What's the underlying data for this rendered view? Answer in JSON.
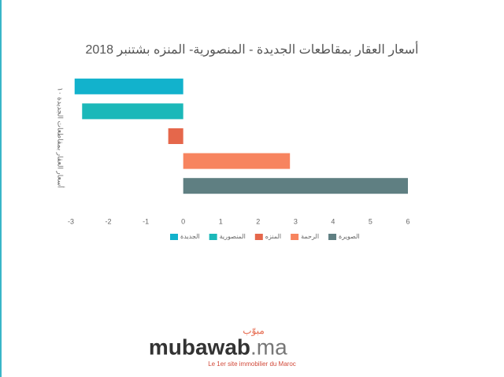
{
  "chart_data": {
    "type": "bar",
    "orientation": "horizontal",
    "title": "أسعار العقار بمقاطعات الجديدة - المنصورية- المنزه بشتنبر 2018",
    "categories": [
      "أسعار العقار بمقاطعات الجديدة ١٠"
    ],
    "series": [
      {
        "name": "الجديدة",
        "color": "#12b2cc",
        "values": [
          -2.9
        ]
      },
      {
        "name": "المنصورية",
        "color": "#1bb8b9",
        "values": [
          -2.7
        ]
      },
      {
        "name": "المنزه",
        "color": "#e5674b",
        "values": [
          -0.4
        ]
      },
      {
        "name": "الرحمة",
        "color": "#f7845f",
        "values": [
          2.85
        ]
      },
      {
        "name": "الصويرة",
        "color": "#5f7f82",
        "values": [
          6
        ]
      }
    ],
    "xlim": [
      -3,
      6
    ],
    "xticks": [
      -3,
      -2,
      -1,
      0,
      1,
      2,
      3,
      4,
      5,
      6
    ],
    "grid": false
  },
  "branding": {
    "logo": "mubawab",
    "domain": ".ma",
    "arabic": "مبوّب",
    "tagline": "Le 1er site immobilier du Maroc"
  }
}
